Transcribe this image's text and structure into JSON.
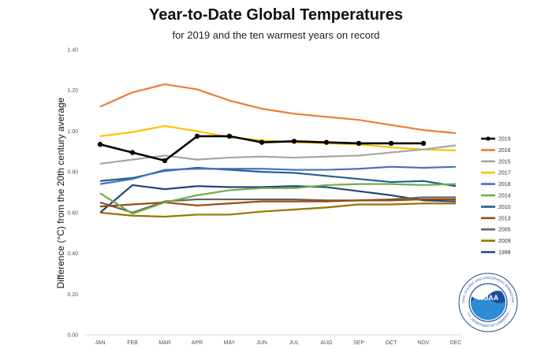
{
  "chart_data": {
    "type": "line",
    "title": "Year-to-Date Global Temperatures",
    "subtitle": "for 2019 and the ten warmest years on record",
    "ylabel": "Difference (°C) from the 20th century average",
    "xlabel": "",
    "categories": [
      "JAN",
      "FEB",
      "MAR",
      "APR",
      "MAY",
      "JUN",
      "JUL",
      "AUG",
      "SEP",
      "OCT",
      "NOV",
      "DEC"
    ],
    "y_ticks": [
      "0.00",
      "0.20",
      "0.40",
      "0.60",
      "0.80",
      "1.00",
      "1.20",
      "1.40"
    ],
    "ylim": [
      0,
      1.4
    ],
    "grid": false,
    "legend_position": "right",
    "series": [
      {
        "name": "2019",
        "color": "#000000",
        "markers": true,
        "values": [
          0.935,
          0.895,
          0.855,
          0.975,
          0.975,
          0.945,
          0.95,
          0.945,
          0.94,
          0.94,
          0.94,
          null
        ]
      },
      {
        "name": "2016",
        "color": "#ED7D31",
        "values": [
          1.12,
          1.19,
          1.23,
          1.205,
          1.15,
          1.11,
          1.085,
          1.07,
          1.055,
          1.03,
          1.005,
          0.99
        ]
      },
      {
        "name": "2015",
        "color": "#A5A5A5",
        "values": [
          0.84,
          0.86,
          0.88,
          0.86,
          0.87,
          0.875,
          0.87,
          0.875,
          0.88,
          0.895,
          0.91,
          0.93
        ]
      },
      {
        "name": "2017",
        "color": "#FFC000",
        "values": [
          0.975,
          0.995,
          1.025,
          1.0,
          0.97,
          0.955,
          0.945,
          0.94,
          0.935,
          0.92,
          0.91,
          0.905
        ]
      },
      {
        "name": "2018",
        "color": "#4472C4",
        "values": [
          0.74,
          0.765,
          0.81,
          0.815,
          0.815,
          0.815,
          0.81,
          0.81,
          0.815,
          0.825,
          0.82,
          0.825
        ]
      },
      {
        "name": "2014",
        "color": "#70AD47",
        "values": [
          0.695,
          0.595,
          0.65,
          0.685,
          0.71,
          0.72,
          0.72,
          0.735,
          0.74,
          0.74,
          0.735,
          0.74
        ]
      },
      {
        "name": "2010",
        "color": "#255E91",
        "values": [
          0.755,
          0.77,
          0.805,
          0.82,
          0.81,
          0.8,
          0.795,
          0.78,
          0.765,
          0.75,
          0.755,
          0.73
        ]
      },
      {
        "name": "2013",
        "color": "#9E480E",
        "values": [
          0.63,
          0.64,
          0.65,
          0.635,
          0.645,
          0.655,
          0.655,
          0.655,
          0.66,
          0.66,
          0.665,
          0.665
        ]
      },
      {
        "name": "2005",
        "color": "#636363",
        "values": [
          0.65,
          0.6,
          0.655,
          0.665,
          0.665,
          0.665,
          0.665,
          0.66,
          0.66,
          0.665,
          0.675,
          0.675
        ]
      },
      {
        "name": "2009",
        "color": "#997300",
        "values": [
          0.6,
          0.585,
          0.58,
          0.59,
          0.59,
          0.605,
          0.615,
          0.625,
          0.64,
          0.64,
          0.645,
          0.645
        ]
      },
      {
        "name": "1998",
        "color": "#264478",
        "values": [
          0.6,
          0.735,
          0.715,
          0.73,
          0.725,
          0.725,
          0.73,
          0.725,
          0.705,
          0.685,
          0.66,
          0.655
        ]
      }
    ]
  },
  "logo": {
    "text": "NOAA",
    "ring_text_top": "NATIONAL OCEANIC AND ATMOSPHERIC ADMINISTRATION",
    "ring_text_bottom": "U.S. DEPARTMENT OF COMMERCE"
  }
}
